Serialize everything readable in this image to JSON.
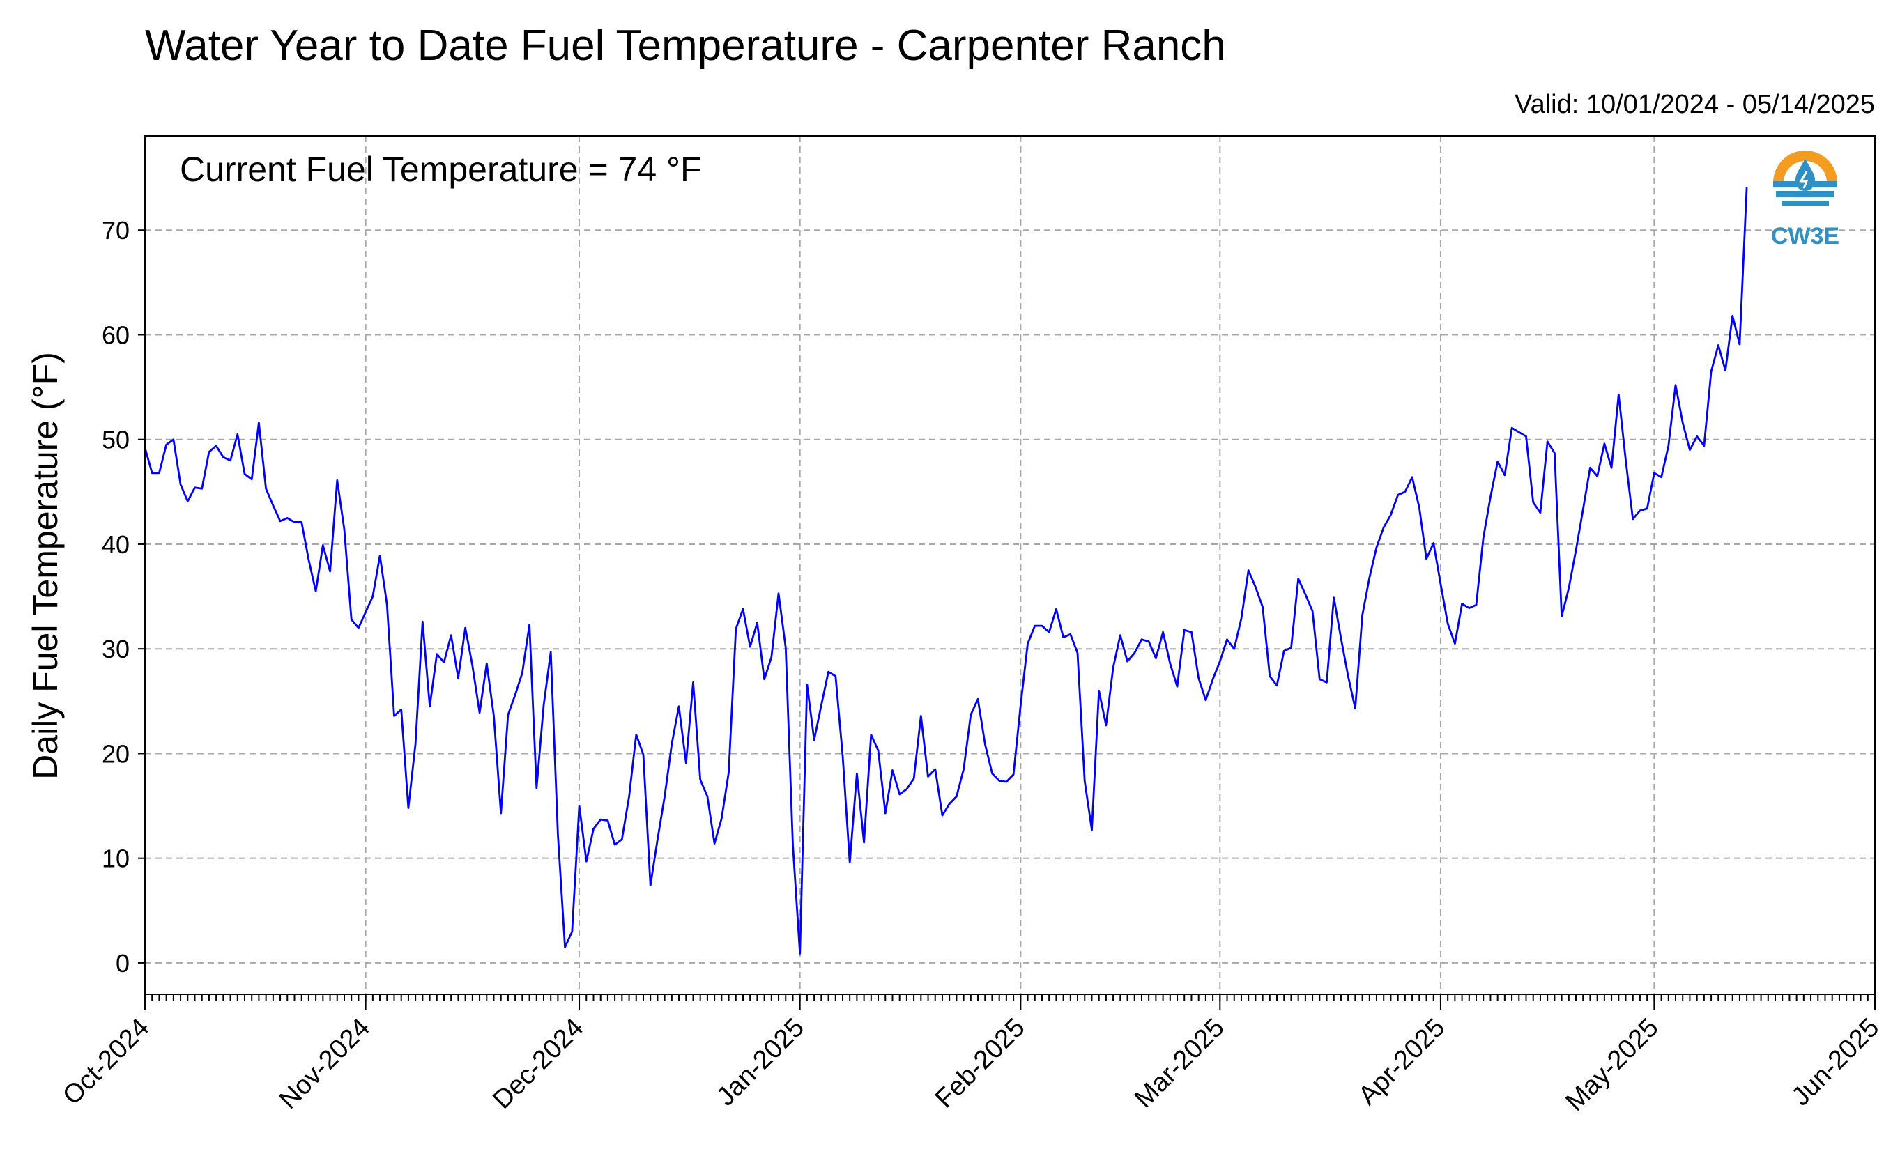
{
  "chart_data": {
    "type": "line",
    "title": "Water Year to Date Fuel Temperature - Carpenter Ranch",
    "valid": "Valid: 10/01/2024 - 05/14/2025",
    "annotation": "Current Fuel Temperature = 74 °F",
    "ylabel": "Daily Fuel Temperature (°F)",
    "xlabel": "",
    "ylim": [
      -3,
      79
    ],
    "xlim": [
      "2024-10-01",
      "2025-06-01"
    ],
    "yticks": [
      "0",
      "10",
      "20",
      "30",
      "40",
      "50",
      "60",
      "70"
    ],
    "xticks": [
      {
        "date": "2024-10-01",
        "label": "Oct-2024"
      },
      {
        "date": "2024-11-01",
        "label": "Nov-2024"
      },
      {
        "date": "2024-12-01",
        "label": "Dec-2024"
      },
      {
        "date": "2025-01-01",
        "label": "Jan-2025"
      },
      {
        "date": "2025-02-01",
        "label": "Feb-2025"
      },
      {
        "date": "2025-03-01",
        "label": "Mar-2025"
      },
      {
        "date": "2025-04-01",
        "label": "Apr-2025"
      },
      {
        "date": "2025-05-01",
        "label": "May-2025"
      },
      {
        "date": "2025-06-01",
        "label": "Jun-2025"
      }
    ],
    "grid": true,
    "series_color": "#0000ff",
    "logo_text": "CW3E",
    "logo_colors": {
      "orange": "#f39c1f",
      "blue": "#2f90c4"
    },
    "series": [
      {
        "start_date": "2024-10-01",
        "values": [
          49.2,
          46.8,
          46.8,
          49.5,
          50.0,
          45.7,
          44.1,
          45.4,
          45.3,
          48.8,
          49.4,
          48.3,
          48.0,
          50.5,
          46.7,
          46.2,
          51.6,
          45.3,
          43.7,
          42.2,
          42.5,
          42.1,
          42.1,
          38.5,
          35.5,
          39.9,
          37.4,
          46.1,
          41.4,
          32.8,
          32.0,
          33.5,
          35.0,
          38.9,
          34.2,
          23.6,
          24.2,
          14.8,
          20.9,
          32.6,
          24.5,
          29.5,
          28.7,
          31.3,
          27.2,
          32.0,
          28.4,
          23.9,
          28.6,
          23.6,
          14.3,
          23.7,
          25.6,
          27.7,
          32.3,
          16.7,
          24.6,
          29.7,
          12.3,
          1.5,
          3.0,
          15.0,
          9.7,
          12.8,
          13.7,
          13.6,
          11.3,
          11.8,
          15.9,
          21.8,
          19.9,
          7.4,
          11.8,
          15.9,
          20.9,
          24.5,
          19.1,
          26.8,
          17.5,
          15.9,
          11.4,
          13.8,
          18.2,
          31.9,
          33.8,
          30.2,
          32.5,
          27.1,
          29.2,
          35.3,
          30.1,
          11.3,
          0.9,
          26.6,
          21.3,
          24.6,
          27.8,
          27.4,
          19.8,
          9.6,
          18.1,
          11.5,
          21.8,
          20.3,
          14.3,
          18.4,
          16.1,
          16.6,
          17.6,
          23.6,
          17.8,
          18.5,
          14.1,
          15.2,
          15.9,
          18.5,
          23.7,
          25.2,
          20.9,
          18.1,
          17.4,
          17.3,
          18.0,
          24.6,
          30.5,
          32.2,
          32.2,
          31.6,
          33.8,
          31.1,
          31.4,
          29.6,
          17.4,
          12.7,
          26.0,
          22.7,
          28.2,
          31.3,
          28.8,
          29.6,
          30.9,
          30.7,
          29.1,
          31.6,
          28.6,
          26.4,
          31.8,
          31.6,
          27.2,
          25.1,
          27.1,
          28.8,
          30.9,
          30.0,
          32.9,
          37.5,
          35.9,
          34.0,
          27.4,
          26.5,
          29.8,
          30.1,
          36.7,
          35.2,
          33.6,
          27.1,
          26.8,
          34.9,
          31.0,
          27.4,
          24.3,
          33.2,
          36.8,
          39.7,
          41.6,
          42.8,
          44.7,
          45.0,
          46.4,
          43.5,
          38.6,
          40.1,
          36.2,
          32.4,
          30.5,
          34.3,
          33.9,
          34.2,
          40.6,
          44.5,
          47.9,
          46.6,
          51.1,
          50.7,
          50.3,
          44.0,
          43.0,
          49.8,
          48.7,
          33.1,
          35.8,
          39.4,
          43.3,
          47.3,
          46.5,
          49.6,
          47.3,
          54.3,
          48.0,
          42.4,
          43.2,
          43.4,
          46.8,
          46.4,
          49.4,
          55.2,
          51.6,
          49.0,
          50.3,
          49.4,
          56.5,
          59.0,
          56.6,
          61.8,
          59.1,
          74.1
        ]
      }
    ]
  }
}
